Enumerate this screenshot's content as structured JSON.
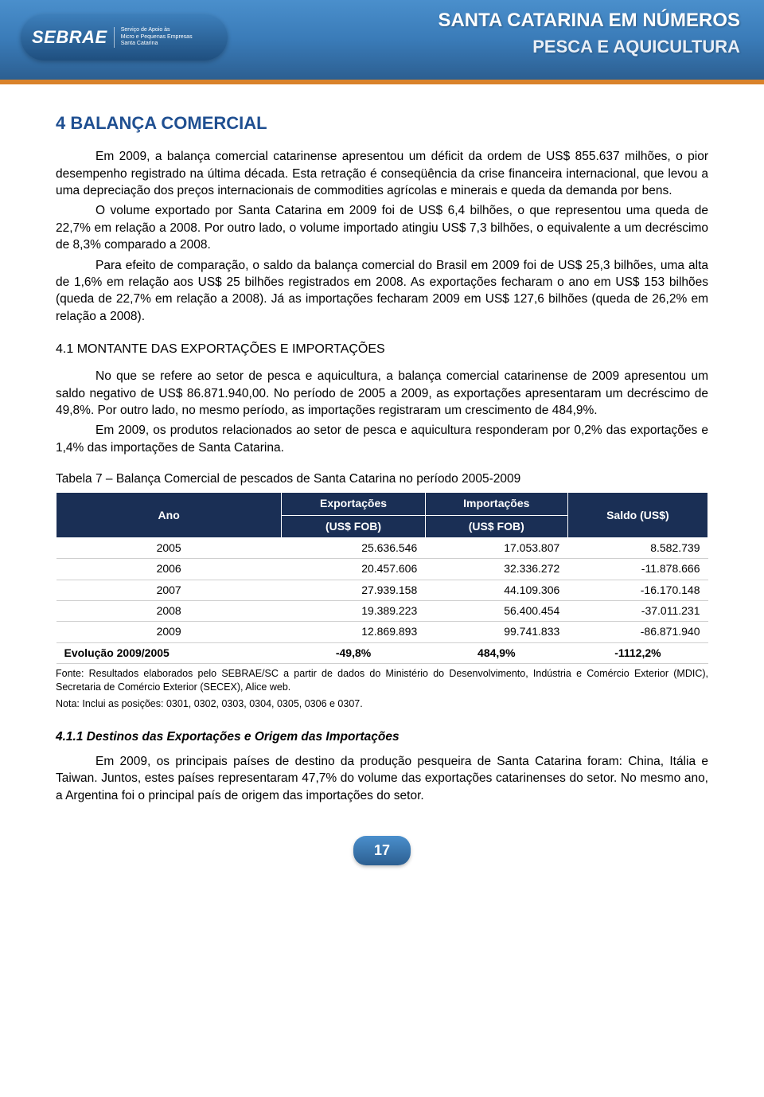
{
  "header": {
    "logo_main": "SEBRAE",
    "logo_sub_line1": "Serviço de Apoio às",
    "logo_sub_line2": "Micro e Pequenas Empresas",
    "logo_sub_line3": "Santa Catarina",
    "title_main": "SANTA CATARINA EM NÚMEROS",
    "title_sub": "PESCA E AQUICULTURA"
  },
  "section": {
    "number_title": "4  BALANÇA COMERCIAL",
    "p1": "Em 2009, a balança comercial catarinense apresentou um déficit da ordem de US$ 855.637 milhões, o pior desempenho registrado na última década. Esta retração é conseqüência da crise financeira internacional, que levou a uma depreciação dos preços internacionais de commodities agrícolas e minerais e queda da demanda por bens.",
    "p2": "O volume exportado por Santa Catarina em 2009 foi de US$ 6,4 bilhões, o que representou uma queda de 22,7% em relação a 2008. Por outro lado, o volume importado atingiu US$ 7,3 bilhões, o equivalente a um decréscimo de 8,3% comparado a 2008.",
    "p3": "Para efeito de comparação, o saldo da balança comercial do Brasil em 2009 foi de US$ 25,3 bilhões, uma alta de 1,6% em relação aos US$ 25 bilhões registrados em 2008. As exportações fecharam o ano em US$ 153 bilhões (queda de 22,7% em relação a 2008). Já as importações fecharam 2009 em US$ 127,6 bilhões (queda de 26,2% em relação a 2008).",
    "sub_title": "4.1  MONTANTE DAS EXPORTAÇÕES E IMPORTAÇÕES",
    "p4": "No que se refere ao setor de pesca e aquicultura, a balança comercial catarinense de 2009 apresentou um saldo negativo de US$ 86.871.940,00. No período de 2005 a 2009, as exportações apresentaram um decréscimo de 49,8%. Por outro lado, no mesmo período, as importações registraram um crescimento de 484,9%.",
    "p5": "Em 2009, os produtos relacionados ao setor de pesca e aquicultura responderam por 0,2% das exportações e 1,4% das importações de Santa Catarina.",
    "table_caption": "Tabela 7 – Balança Comercial de pescados de Santa Catarina no período 2005-2009",
    "table_source": "Fonte: Resultados elaborados pelo SEBRAE/SC a partir de dados do Ministério do Desenvolvimento, Indústria e Comércio Exterior (MDIC), Secretaria de Comércio Exterior (SECEX), Alice web.",
    "table_note": "Nota: Inclui as posições: 0301, 0302, 0303, 0304, 0305, 0306 e 0307.",
    "subsub_title": "4.1.1  Destinos das Exportações e Origem das Importações",
    "p6": "Em 2009, os principais países de destino da produção pesqueira de Santa Catarina foram: China, Itália e Taiwan. Juntos, estes países representaram 47,7% do volume das exportações catarinenses do setor. No mesmo ano, a Argentina foi o principal país de origem das importações do setor."
  },
  "table": {
    "header_bg": "#1a2f55",
    "header_color": "#ffffff",
    "col_ano": "Ano",
    "col_exp_l1": "Exportações",
    "col_exp_l2": "(US$ FOB)",
    "col_imp_l1": "Importações",
    "col_imp_l2": "(US$ FOB)",
    "col_saldo": "Saldo (US$)",
    "rows": [
      {
        "ano": "2005",
        "exp": "25.636.546",
        "imp": "17.053.807",
        "saldo": "8.582.739"
      },
      {
        "ano": "2006",
        "exp": "20.457.606",
        "imp": "32.336.272",
        "saldo": "-11.878.666"
      },
      {
        "ano": "2007",
        "exp": "27.939.158",
        "imp": "44.109.306",
        "saldo": "-16.170.148"
      },
      {
        "ano": "2008",
        "exp": "19.389.223",
        "imp": "56.400.454",
        "saldo": "-37.011.231"
      },
      {
        "ano": "2009",
        "exp": "12.869.893",
        "imp": "99.741.833",
        "saldo": "-86.871.940"
      }
    ],
    "evolution": {
      "label": "Evolução 2009/2005",
      "exp": "-49,8%",
      "imp": "484,9%",
      "saldo": "-1112,2%"
    }
  },
  "footer": {
    "page_number": "17"
  },
  "colors": {
    "brand_blue_light": "#4a8fcc",
    "brand_blue_dark": "#2c5f91",
    "accent_orange": "#d9822b",
    "section_title": "#1f4f91",
    "table_header_bg": "#1a2f55"
  }
}
